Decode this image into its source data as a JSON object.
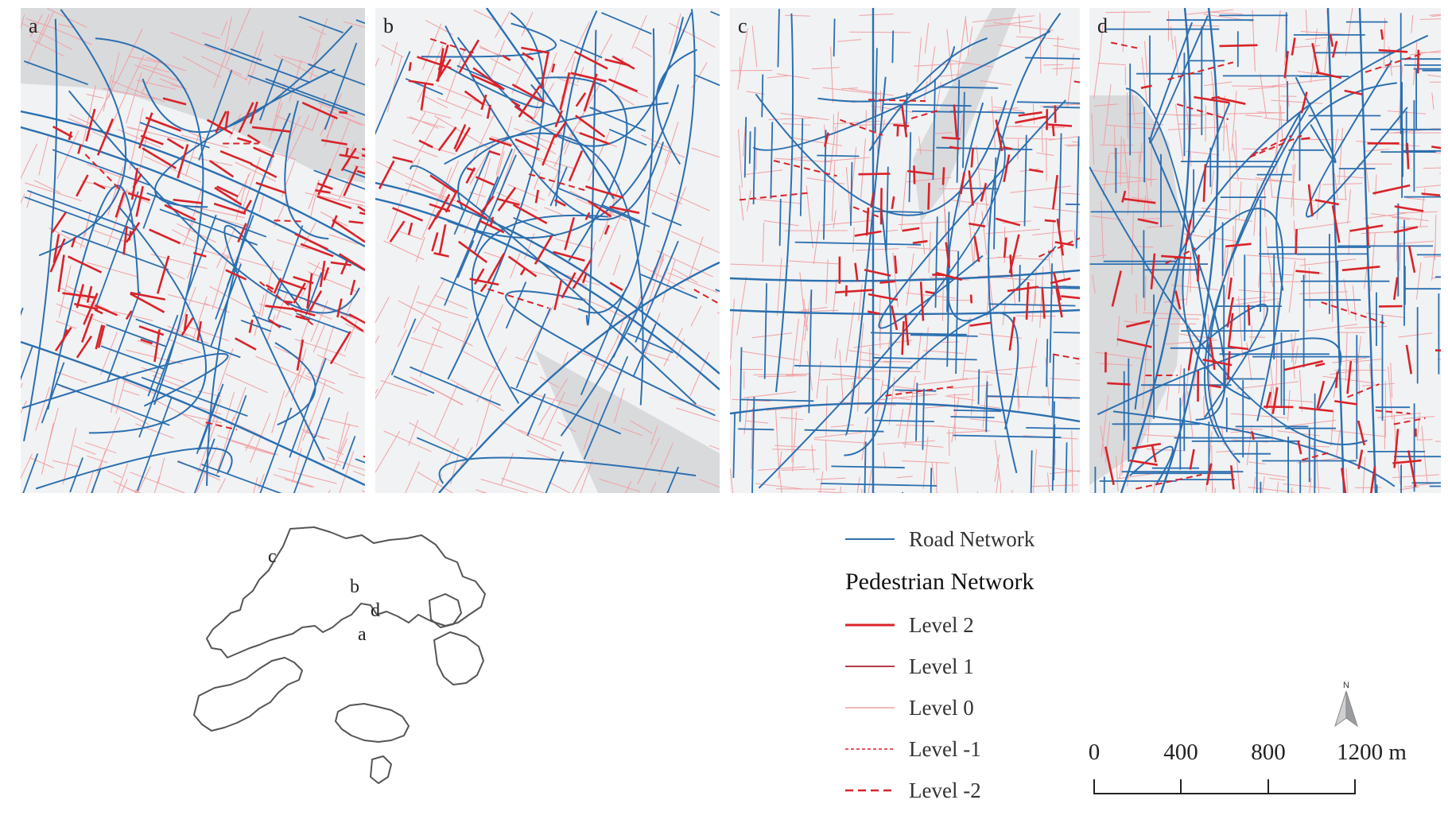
{
  "panels": [
    {
      "id": "a",
      "label": "a"
    },
    {
      "id": "b",
      "label": "b"
    },
    {
      "id": "c",
      "label": "c"
    },
    {
      "id": "d",
      "label": "d"
    }
  ],
  "inset": {
    "locations": [
      {
        "label": "a"
      },
      {
        "label": "b"
      },
      {
        "label": "c"
      },
      {
        "label": "d"
      }
    ]
  },
  "legend": {
    "road": {
      "label": "Road Network",
      "color": "#2b6fb0"
    },
    "heading": "Pedestrian Network",
    "levels": [
      {
        "label": "Level 2",
        "color": "#d8232a",
        "style": "solid-thick"
      },
      {
        "label": "Level 1",
        "color": "#b23a48",
        "style": "solid"
      },
      {
        "label": "Level 0",
        "color": "#f0a0a4",
        "style": "solid-thin"
      },
      {
        "label": "Level -1",
        "color": "#d8232a",
        "style": "dashed-thin"
      },
      {
        "label": "Level -2",
        "color": "#d8232a",
        "style": "dashed"
      }
    ]
  },
  "scale": {
    "ticks": [
      "0",
      "400",
      "800",
      "1200 m"
    ]
  },
  "north": {
    "label": "N",
    "icon": "north-arrow-icon"
  },
  "colors": {
    "road": "#2b6fb0",
    "ped_level0": "#f0a0a4",
    "ped_level2": "#d8232a",
    "water": "#d9dadc",
    "land": "#f1f2f3"
  }
}
